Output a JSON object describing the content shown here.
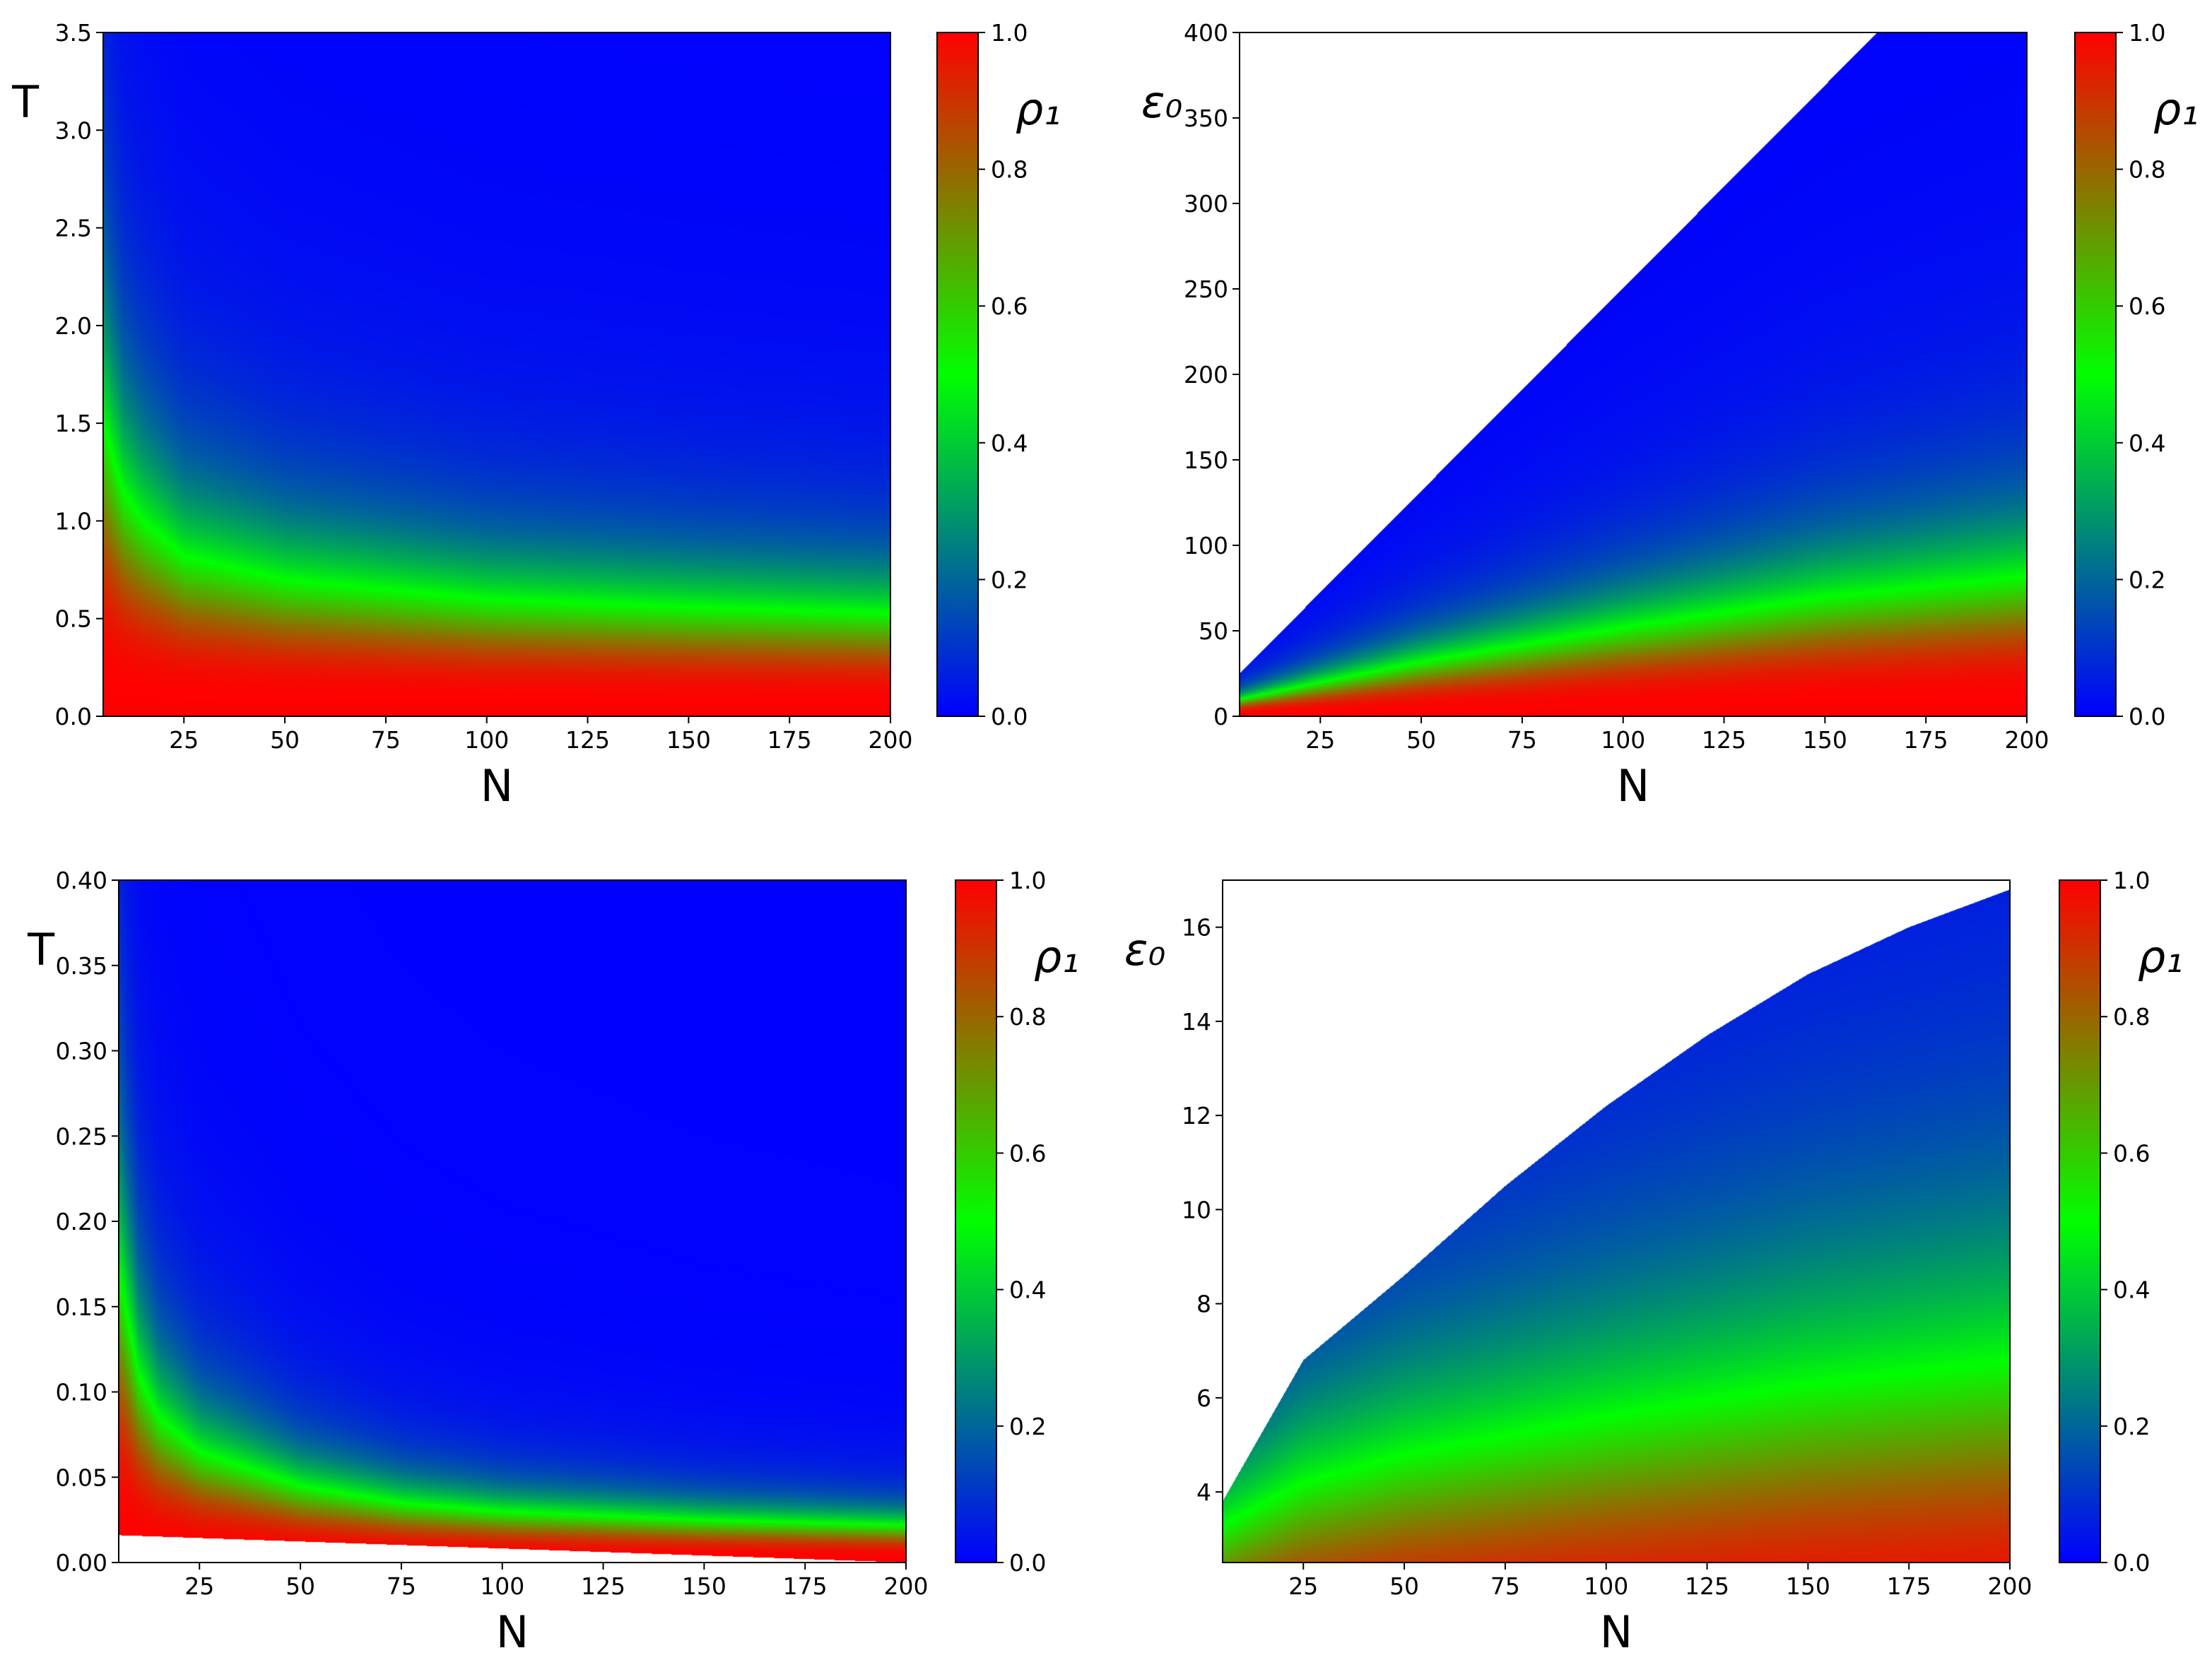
{
  "colors": {
    "cmap_low": "#0000ff",
    "cmap_mid": "#00ff00",
    "cmap_high": "#ff0000",
    "undefined_region": "#ffffff"
  },
  "chart_data": [
    {
      "type": "heatmap",
      "title": "",
      "xlabel": "N",
      "ylabel": "T",
      "xlim": [
        5,
        200
      ],
      "ylim": [
        0,
        3.5
      ],
      "xticks": [
        25,
        50,
        75,
        100,
        125,
        150,
        175,
        200
      ],
      "xtick_labels": [
        "25",
        "50",
        "75",
        "100",
        "125",
        "150",
        "175",
        "200"
      ],
      "yticks": [
        0,
        0.5,
        1.0,
        1.5,
        2.0,
        2.5,
        3.0,
        3.5
      ],
      "ytick_labels": [
        "0.0",
        "0.5",
        "1.0",
        "1.5",
        "2.0",
        "2.5",
        "3.0",
        "3.5"
      ],
      "colorbar": {
        "label": "ρ₁",
        "range": [
          0,
          1
        ],
        "ticks": [
          0,
          0.2,
          0.4,
          0.6,
          0.8,
          1.0
        ],
        "tick_labels": [
          "0.0",
          "0.2",
          "0.4",
          "0.6",
          "0.8",
          "1.0"
        ],
        "colors": [
          "#0000ff",
          "#00ff00",
          "#ff0000"
        ]
      },
      "half_density_contour": {
        "x": [
          5,
          10,
          15,
          25,
          50,
          75,
          100,
          150,
          200
        ],
        "y": [
          1.5,
          1.15,
          1.0,
          0.82,
          0.7,
          0.65,
          0.6,
          0.56,
          0.53
        ]
      },
      "boundary": {
        "x": [
          5,
          200
        ],
        "y_max": [
          3.5,
          3.5
        ]
      }
    },
    {
      "type": "heatmap",
      "title": "",
      "xlabel": "N",
      "ylabel": "ε₀",
      "xlim": [
        5,
        200
      ],
      "ylim": [
        0,
        400
      ],
      "xticks": [
        25,
        50,
        75,
        100,
        125,
        150,
        175,
        200
      ],
      "xtick_labels": [
        "25",
        "50",
        "75",
        "100",
        "125",
        "150",
        "175",
        "200"
      ],
      "yticks": [
        0,
        50,
        100,
        150,
        200,
        250,
        300,
        350,
        400
      ],
      "ytick_labels": [
        "0",
        "50",
        "100",
        "150",
        "200",
        "250",
        "300",
        "350",
        "400"
      ],
      "colorbar": {
        "label": "ρ₁",
        "range": [
          0,
          1
        ],
        "ticks": [
          0,
          0.2,
          0.4,
          0.6,
          0.8,
          1.0
        ],
        "tick_labels": [
          "0.0",
          "0.2",
          "0.4",
          "0.6",
          "0.8",
          "1.0"
        ],
        "colors": [
          "#0000ff",
          "#00ff00",
          "#ff0000"
        ]
      },
      "half_density_contour": {
        "x": [
          5,
          25,
          50,
          100,
          150,
          200
        ],
        "y": [
          10,
          20,
          32,
          52,
          70,
          82
        ]
      },
      "boundary": {
        "x": [
          5,
          163,
          200
        ],
        "y_max": [
          25,
          400,
          400
        ]
      }
    },
    {
      "type": "heatmap",
      "title": "",
      "xlabel": "N",
      "ylabel": "T",
      "xlim": [
        5,
        200
      ],
      "ylim": [
        0,
        0.4
      ],
      "xticks": [
        25,
        50,
        75,
        100,
        125,
        150,
        175,
        200
      ],
      "xtick_labels": [
        "25",
        "50",
        "75",
        "100",
        "125",
        "150",
        "175",
        "200"
      ],
      "yticks": [
        0,
        0.05,
        0.1,
        0.15,
        0.2,
        0.25,
        0.3,
        0.35,
        0.4
      ],
      "ytick_labels": [
        "0.00",
        "0.05",
        "0.10",
        "0.15",
        "0.20",
        "0.25",
        "0.30",
        "0.35",
        "0.40"
      ],
      "colorbar": {
        "label": "ρ₁",
        "range": [
          0,
          1
        ],
        "ticks": [
          0,
          0.2,
          0.4,
          0.6,
          0.8,
          1.0
        ],
        "tick_labels": [
          "0.0",
          "0.2",
          "0.4",
          "0.6",
          "0.8",
          "1.0"
        ],
        "colors": [
          "#0000ff",
          "#00ff00",
          "#ff0000"
        ]
      },
      "half_density_contour": {
        "x": [
          5,
          10,
          15,
          25,
          50,
          75,
          100,
          150,
          200
        ],
        "y": [
          0.17,
          0.11,
          0.085,
          0.065,
          0.045,
          0.035,
          0.03,
          0.025,
          0.022
        ]
      },
      "boundary": {
        "x": [
          5,
          200
        ],
        "y_max": [
          0.4,
          0.4
        ],
        "y_min": [
          0.016,
          0.0
        ]
      }
    },
    {
      "type": "heatmap",
      "title": "",
      "xlabel": "N",
      "ylabel": "ε₀",
      "xlim": [
        5,
        200
      ],
      "ylim": [
        2.5,
        17
      ],
      "xticks": [
        25,
        50,
        75,
        100,
        125,
        150,
        175,
        200
      ],
      "xtick_labels": [
        "25",
        "50",
        "75",
        "100",
        "125",
        "150",
        "175",
        "200"
      ],
      "yticks": [
        4,
        6,
        8,
        10,
        12,
        14,
        16
      ],
      "ytick_labels": [
        "4",
        "6",
        "8",
        "10",
        "12",
        "14",
        "16"
      ],
      "colorbar": {
        "label": "ρ₁",
        "range": [
          0,
          1
        ],
        "ticks": [
          0,
          0.2,
          0.4,
          0.6,
          0.8,
          1.0
        ],
        "tick_labels": [
          "0.0",
          "0.2",
          "0.4",
          "0.6",
          "0.8",
          "1.0"
        ],
        "colors": [
          "#0000ff",
          "#00ff00",
          "#ff0000"
        ]
      },
      "half_density_contour": {
        "x": [
          5,
          25,
          50,
          100,
          150,
          200
        ],
        "y": [
          3.3,
          4.2,
          4.8,
          5.6,
          6.3,
          6.8
        ]
      },
      "boundary": {
        "x": [
          5,
          25,
          50,
          75,
          100,
          125,
          150,
          175,
          200
        ],
        "y_max": [
          3.8,
          6.8,
          8.6,
          10.5,
          12.2,
          13.7,
          15.0,
          16.0,
          16.8
        ]
      }
    }
  ]
}
